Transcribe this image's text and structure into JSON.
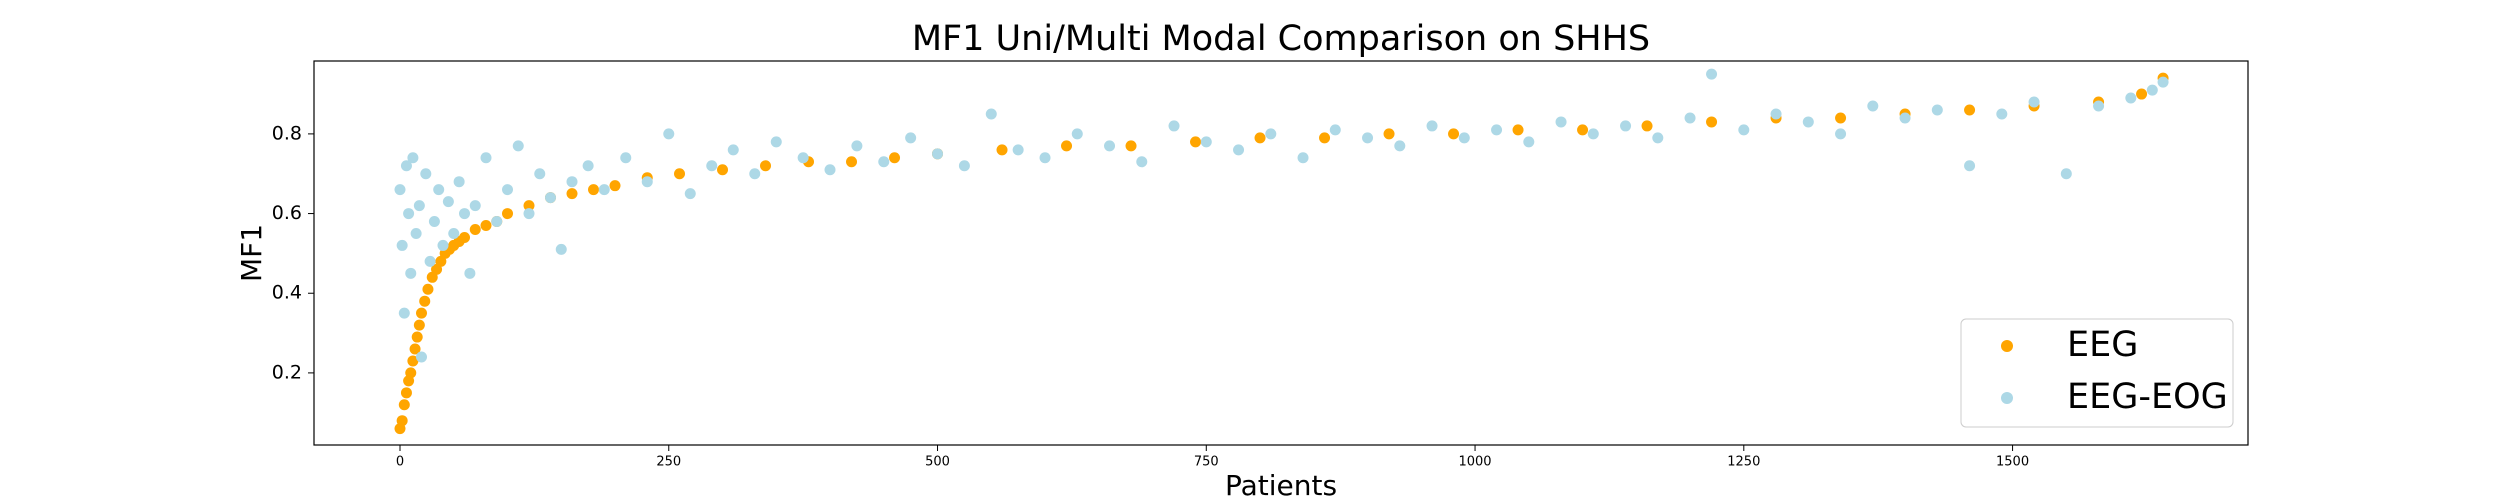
{
  "chart_data": {
    "type": "scatter",
    "title": "MF1 Uni/Multi Modal Comparison on SHHS",
    "x_label": "Patients",
    "y_label": "MF1",
    "xlim": [
      -80,
      1719
    ],
    "ylim": [
      0.019,
      0.983
    ],
    "xticks": [
      0,
      250,
      500,
      750,
      1000,
      1250,
      1500
    ],
    "yticks": [
      0.2,
      0.4,
      0.6,
      0.8
    ],
    "legend": "lower right",
    "series": [
      {
        "name": "EEG",
        "color": "#ffa500",
        "x": [
          0,
          2,
          4,
          6,
          8,
          10,
          12,
          14,
          16,
          18,
          20,
          23,
          26,
          30,
          34,
          38,
          42,
          46,
          50,
          55,
          60,
          70,
          80,
          90,
          100,
          120,
          140,
          160,
          180,
          200,
          230,
          260,
          300,
          340,
          380,
          420,
          460,
          500,
          560,
          620,
          680,
          740,
          800,
          860,
          920,
          980,
          1040,
          1100,
          1160,
          1220,
          1280,
          1340,
          1400,
          1460,
          1520,
          1580,
          1620,
          1640
        ],
        "values": [
          0.06,
          0.08,
          0.12,
          0.15,
          0.18,
          0.2,
          0.23,
          0.26,
          0.29,
          0.32,
          0.35,
          0.38,
          0.41,
          0.44,
          0.46,
          0.48,
          0.5,
          0.51,
          0.52,
          0.53,
          0.54,
          0.56,
          0.57,
          0.58,
          0.6,
          0.62,
          0.64,
          0.65,
          0.66,
          0.67,
          0.69,
          0.7,
          0.71,
          0.72,
          0.73,
          0.73,
          0.74,
          0.75,
          0.76,
          0.77,
          0.77,
          0.78,
          0.79,
          0.79,
          0.8,
          0.8,
          0.81,
          0.81,
          0.82,
          0.83,
          0.84,
          0.84,
          0.85,
          0.86,
          0.87,
          0.88,
          0.9,
          0.94
        ]
      },
      {
        "name": "EEG-EOG",
        "color": "#add8e6",
        "x": [
          0,
          2,
          4,
          6,
          8,
          10,
          12,
          15,
          18,
          20,
          24,
          28,
          32,
          36,
          40,
          45,
          50,
          55,
          60,
          65,
          70,
          80,
          90,
          100,
          110,
          120,
          130,
          140,
          150,
          160,
          175,
          190,
          210,
          230,
          250,
          270,
          290,
          310,
          330,
          350,
          375,
          400,
          425,
          450,
          475,
          500,
          525,
          550,
          575,
          600,
          630,
          660,
          690,
          720,
          750,
          780,
          810,
          840,
          870,
          900,
          930,
          960,
          990,
          1020,
          1050,
          1080,
          1110,
          1140,
          1170,
          1200,
          1220,
          1250,
          1280,
          1310,
          1340,
          1370,
          1400,
          1430,
          1460,
          1490,
          1520,
          1550,
          1580,
          1610,
          1630,
          1640
        ],
        "values": [
          0.66,
          0.52,
          0.35,
          0.72,
          0.6,
          0.45,
          0.74,
          0.55,
          0.62,
          0.24,
          0.7,
          0.48,
          0.58,
          0.66,
          0.52,
          0.63,
          0.55,
          0.68,
          0.6,
          0.45,
          0.62,
          0.74,
          0.58,
          0.66,
          0.77,
          0.6,
          0.7,
          0.64,
          0.51,
          0.68,
          0.72,
          0.66,
          0.74,
          0.68,
          0.8,
          0.65,
          0.72,
          0.76,
          0.7,
          0.78,
          0.74,
          0.71,
          0.77,
          0.73,
          0.79,
          0.75,
          0.72,
          0.85,
          0.76,
          0.74,
          0.8,
          0.77,
          0.73,
          0.82,
          0.78,
          0.76,
          0.8,
          0.74,
          0.81,
          0.79,
          0.77,
          0.82,
          0.79,
          0.81,
          0.78,
          0.83,
          0.8,
          0.82,
          0.79,
          0.84,
          0.95,
          0.81,
          0.85,
          0.83,
          0.8,
          0.87,
          0.84,
          0.86,
          0.72,
          0.85,
          0.88,
          0.7,
          0.87,
          0.89,
          0.91,
          0.93
        ]
      }
    ]
  }
}
